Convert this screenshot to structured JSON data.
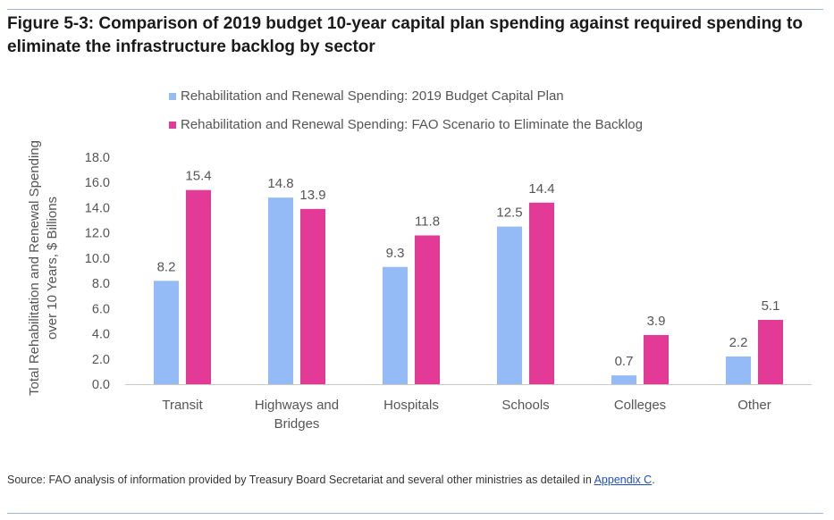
{
  "figure": {
    "title": "Figure 5-3: Comparison of 2019 budget 10-year capital plan spending against required spending to eliminate the infrastructure backlog by sector"
  },
  "chart_data": {
    "type": "bar",
    "title": "",
    "ylabel_line1": "Total Rehabilitation and Renewal Spending",
    "ylabel_line2": "over 10 Years, $ Billions",
    "xlabel": "",
    "categories": [
      [
        "Transit"
      ],
      [
        "Highways and",
        "Bridges"
      ],
      [
        "Hospitals"
      ],
      [
        "Schools"
      ],
      [
        "Colleges"
      ],
      [
        "Other"
      ]
    ],
    "ylim": [
      0,
      18
    ],
    "yticks": [
      "0.0",
      "2.0",
      "4.0",
      "6.0",
      "8.0",
      "10.0",
      "12.0",
      "14.0",
      "16.0",
      "18.0"
    ],
    "grid": false,
    "legend_position": "top",
    "series": [
      {
        "name": "Rehabilitation and Renewal Spending: 2019 Budget Capital Plan",
        "color": "#94bbf5",
        "values": [
          8.2,
          14.8,
          9.3,
          12.5,
          0.7,
          2.2
        ],
        "labels": [
          "8.2",
          "14.8",
          "9.3",
          "12.5",
          "0.7",
          "2.2"
        ]
      },
      {
        "name": "Rehabilitation and Renewal Spending: FAO Scenario to Eliminate the Backlog",
        "color": "#e23a96",
        "values": [
          15.4,
          13.9,
          11.8,
          14.4,
          3.9,
          5.1
        ],
        "labels": [
          "15.4",
          "13.9",
          "11.8",
          "14.4",
          "3.9",
          "5.1"
        ]
      }
    ]
  },
  "source": {
    "text": "Source: FAO analysis of information provided by Treasury Board Secretariat and several other ministries as detailed in ",
    "link_text": "Appendix C",
    "suffix": "."
  }
}
